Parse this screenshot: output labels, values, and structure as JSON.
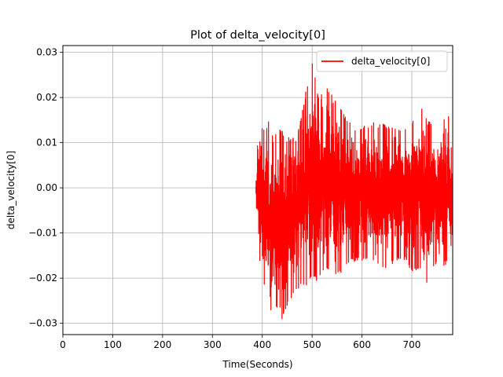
{
  "chart_data": {
    "type": "line",
    "title": "Plot of delta_velocity[0]",
    "xlabel": "Time(Seconds)",
    "ylabel": "delta_velocity[0]",
    "xlim": [
      0,
      782
    ],
    "ylim": [
      -0.0325,
      0.0315
    ],
    "xticks": [
      0,
      100,
      200,
      300,
      400,
      500,
      600,
      700
    ],
    "yticks": [
      -0.03,
      -0.02,
      -0.01,
      0.0,
      0.01,
      0.02,
      0.03
    ],
    "ytick_labels": [
      "−0.03",
      "−0.02",
      "−0.01",
      "0.00",
      "0.01",
      "0.02",
      "0.03"
    ],
    "grid": true,
    "legend_position": "top-right",
    "series": [
      {
        "name": "delta_velocity[0]",
        "color": "#ff0000",
        "x_range": [
          387,
          782
        ],
        "envelope": [
          {
            "x": 387,
            "min": -0.002,
            "max": 0.001
          },
          {
            "x": 392,
            "min": -0.012,
            "max": 0.013
          },
          {
            "x": 397,
            "min": -0.02,
            "max": 0.014
          },
          {
            "x": 405,
            "min": -0.022,
            "max": 0.013
          },
          {
            "x": 412,
            "min": -0.027,
            "max": 0.015
          },
          {
            "x": 422,
            "min": -0.028,
            "max": 0.011
          },
          {
            "x": 432,
            "min": -0.026,
            "max": 0.014
          },
          {
            "x": 440,
            "min": -0.0295,
            "max": 0.013
          },
          {
            "x": 450,
            "min": -0.026,
            "max": 0.011
          },
          {
            "x": 462,
            "min": -0.024,
            "max": 0.012
          },
          {
            "x": 475,
            "min": -0.022,
            "max": 0.014
          },
          {
            "x": 490,
            "min": -0.022,
            "max": 0.023
          },
          {
            "x": 502,
            "min": -0.02,
            "max": 0.0285
          },
          {
            "x": 512,
            "min": -0.021,
            "max": 0.02
          },
          {
            "x": 530,
            "min": -0.018,
            "max": 0.022
          },
          {
            "x": 550,
            "min": -0.02,
            "max": 0.02
          },
          {
            "x": 570,
            "min": -0.017,
            "max": 0.015
          },
          {
            "x": 590,
            "min": -0.016,
            "max": 0.013
          },
          {
            "x": 610,
            "min": -0.016,
            "max": 0.014
          },
          {
            "x": 630,
            "min": -0.017,
            "max": 0.015
          },
          {
            "x": 650,
            "min": -0.018,
            "max": 0.014
          },
          {
            "x": 670,
            "min": -0.016,
            "max": 0.013
          },
          {
            "x": 690,
            "min": -0.016,
            "max": 0.013
          },
          {
            "x": 700,
            "min": -0.019,
            "max": 0.014
          },
          {
            "x": 715,
            "min": -0.018,
            "max": 0.019
          },
          {
            "x": 730,
            "min": -0.021,
            "max": 0.015
          },
          {
            "x": 745,
            "min": -0.017,
            "max": 0.014
          },
          {
            "x": 760,
            "min": -0.018,
            "max": 0.015
          },
          {
            "x": 775,
            "min": -0.016,
            "max": 0.016
          },
          {
            "x": 782,
            "min": -0.01,
            "max": 0.005
          }
        ]
      }
    ]
  }
}
